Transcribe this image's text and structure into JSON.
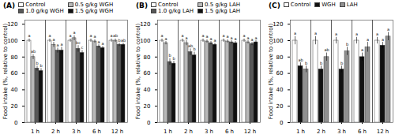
{
  "chart_data": [
    {
      "type": "bar",
      "title": "(A)",
      "categories": [
        "1 h",
        "2 h",
        "3 h",
        "6 h",
        "12 h"
      ],
      "series": [
        {
          "name": "Control",
          "color": "#ffffff",
          "values": [
            100,
            100,
            100,
            100,
            100
          ],
          "errors": [
            2,
            2,
            2,
            2,
            2
          ],
          "letters": [
            "a",
            "a",
            "a",
            "a",
            "a"
          ]
        },
        {
          "name": "0.5 g/kg WGH",
          "color": "#b8b8b8",
          "values": [
            80,
            95,
            103,
            99,
            100
          ],
          "errors": [
            3,
            3,
            3,
            2,
            2
          ],
          "letters": [
            "ab",
            "a",
            "a",
            "a",
            "ab"
          ]
        },
        {
          "name": "1.0 g/kg WGH",
          "color": "#585858",
          "values": [
            66,
            88,
            90,
            93,
            95
          ],
          "errors": [
            3,
            3,
            4,
            2,
            2
          ],
          "letters": [
            "b",
            "a",
            "bc",
            "a",
            "b"
          ]
        },
        {
          "name": "1.5 g/kg WGH",
          "color": "#111111",
          "values": [
            63,
            88,
            85,
            91,
            95
          ],
          "errors": [
            3,
            4,
            3,
            2,
            2
          ],
          "letters": [
            "b",
            "a",
            "c",
            "a",
            "ab"
          ]
        }
      ],
      "ylabel": "Food intake (%, relative to control)",
      "ylim": [
        0,
        125
      ],
      "yticks": [
        0,
        20,
        40,
        60,
        80,
        100,
        120
      ],
      "grid": false
    },
    {
      "type": "bar",
      "title": "(B)",
      "categories": [
        "1 h",
        "2 h",
        "3 h",
        "6 h",
        "12 h"
      ],
      "series": [
        {
          "name": "Control",
          "color": "#ffffff",
          "values": [
            100,
            100,
            100,
            100,
            100
          ],
          "errors": [
            2,
            2,
            2,
            2,
            2
          ],
          "letters": [
            "a",
            "a",
            "a",
            "a",
            "a"
          ]
        },
        {
          "name": "0.5 g/kg LAH",
          "color": "#b8b8b8",
          "values": [
            97,
            97,
            99,
            99,
            98
          ],
          "errors": [
            2,
            3,
            2,
            2,
            2
          ],
          "letters": [
            "a",
            "a",
            "a",
            "a",
            "a"
          ]
        },
        {
          "name": "1.0 g/kg LAH",
          "color": "#585858",
          "values": [
            74,
            86,
            97,
            98,
            96
          ],
          "errors": [
            4,
            4,
            2,
            2,
            2
          ],
          "letters": [
            "b",
            "ab",
            "a",
            "a",
            "a"
          ]
        },
        {
          "name": "1.5 g/kg LAH",
          "color": "#111111",
          "values": [
            72,
            82,
            95,
            97,
            98
          ],
          "errors": [
            3,
            4,
            2,
            2,
            2
          ],
          "letters": [
            "b",
            "b",
            "a",
            "a",
            "a"
          ]
        }
      ],
      "ylabel": "Food intake (%, relative to control)",
      "ylim": [
        0,
        125
      ],
      "yticks": [
        0,
        20,
        40,
        60,
        80,
        100,
        120
      ],
      "grid": false
    },
    {
      "type": "bar",
      "title": "(C)",
      "categories": [
        "1 h",
        "2 h",
        "3 h",
        "6 h",
        "12 h"
      ],
      "series": [
        {
          "name": "Control",
          "color": "#ffffff",
          "values": [
            100,
            100,
            100,
            100,
            100
          ],
          "errors": [
            5,
            5,
            4,
            4,
            4
          ],
          "letters": [
            "a",
            "a",
            "a",
            "a",
            "a"
          ]
        },
        {
          "name": "WGH",
          "color": "#111111",
          "values": [
            69,
            65,
            65,
            80,
            94
          ],
          "errors": [
            4,
            4,
            4,
            5,
            4
          ],
          "letters": [
            "ab",
            "b",
            "b",
            "a",
            "a"
          ]
        },
        {
          "name": "LAH",
          "color": "#909090",
          "values": [
            65,
            80,
            87,
            92,
            105
          ],
          "errors": [
            4,
            5,
            5,
            6,
            5
          ],
          "letters": [
            "b",
            "ab",
            "b",
            "a",
            "a"
          ]
        }
      ],
      "ylabel": "Food intake (%, relative to control)",
      "ylim": [
        0,
        125
      ],
      "yticks": [
        0,
        20,
        40,
        60,
        80,
        100,
        120
      ],
      "grid": false
    }
  ]
}
